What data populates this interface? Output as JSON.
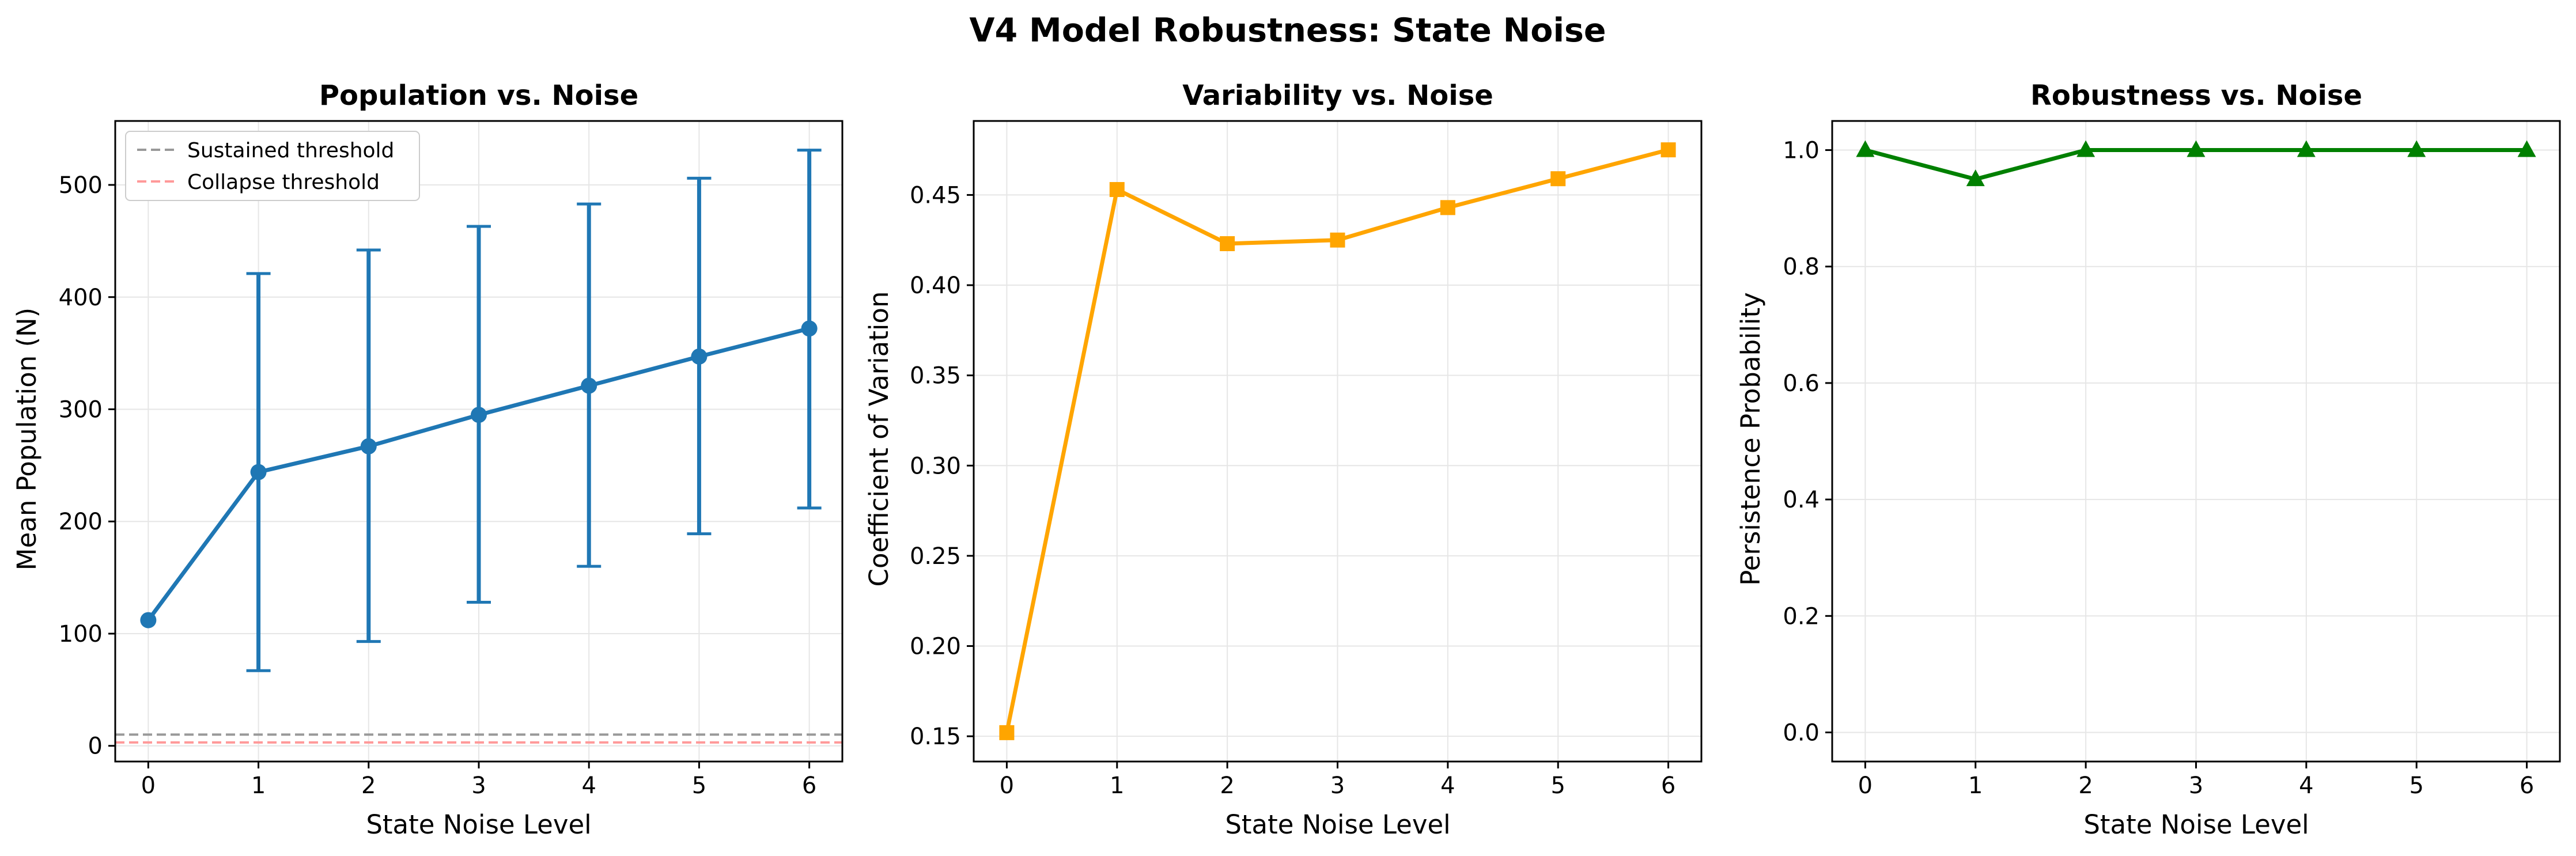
{
  "figure": {
    "suptitle": "V4 Model Robustness: State Noise"
  },
  "chart_data": [
    {
      "type": "line",
      "title": "Population vs. Noise",
      "xlabel": "State Noise Level",
      "ylabel": "Mean Population (N)",
      "x": [
        0,
        1,
        2,
        3,
        4,
        5,
        6
      ],
      "xlim": [
        -0.3,
        6.3
      ],
      "ylim": [
        -14,
        557
      ],
      "xticks": [
        0,
        1,
        2,
        3,
        4,
        5,
        6
      ],
      "yticks": [
        0,
        100,
        200,
        300,
        400,
        500
      ],
      "grid": true,
      "legend_position": "upper-left",
      "series": [
        {
          "name": "",
          "marker": "circle",
          "color": "#1f77b4",
          "values": [
            112,
            244,
            267,
            295,
            321,
            347,
            372
          ],
          "error_low": [
            112,
            67,
            93,
            128,
            160,
            189,
            212
          ],
          "error_high": [
            112,
            421,
            442,
            463,
            483,
            506,
            531
          ]
        }
      ],
      "reference_lines": [
        {
          "name": "Sustained threshold",
          "y": 10,
          "color": "#999999",
          "style": "dashed"
        },
        {
          "name": "Collapse threshold",
          "y": 3,
          "color": "#ff9999",
          "style": "dashed"
        }
      ]
    },
    {
      "type": "line",
      "title": "Variability vs. Noise",
      "xlabel": "State Noise Level",
      "ylabel": "Coefficient of Variation",
      "x": [
        0,
        1,
        2,
        3,
        4,
        5,
        6
      ],
      "xlim": [
        -0.3,
        6.3
      ],
      "ylim": [
        0.136,
        0.491
      ],
      "xticks": [
        0,
        1,
        2,
        3,
        4,
        5,
        6
      ],
      "yticks": [
        0.15,
        0.2,
        0.25,
        0.3,
        0.35,
        0.4,
        0.45
      ],
      "grid": true,
      "series": [
        {
          "name": "",
          "marker": "square",
          "color": "#ffa500",
          "values": [
            0.152,
            0.453,
            0.423,
            0.425,
            0.443,
            0.459,
            0.475
          ]
        }
      ]
    },
    {
      "type": "line",
      "title": "Robustness vs. Noise",
      "xlabel": "State Noise Level",
      "ylabel": "Persistence Probability",
      "x": [
        0,
        1,
        2,
        3,
        4,
        5,
        6
      ],
      "xlim": [
        -0.3,
        6.3
      ],
      "ylim": [
        -0.05,
        1.05
      ],
      "xticks": [
        0,
        1,
        2,
        3,
        4,
        5,
        6
      ],
      "yticks": [
        0.0,
        0.2,
        0.4,
        0.6,
        0.8,
        1.0
      ],
      "grid": true,
      "series": [
        {
          "name": "",
          "marker": "triangle",
          "color": "#008000",
          "values": [
            1.0,
            0.95,
            1.0,
            1.0,
            1.0,
            1.0,
            1.0
          ]
        }
      ]
    }
  ]
}
